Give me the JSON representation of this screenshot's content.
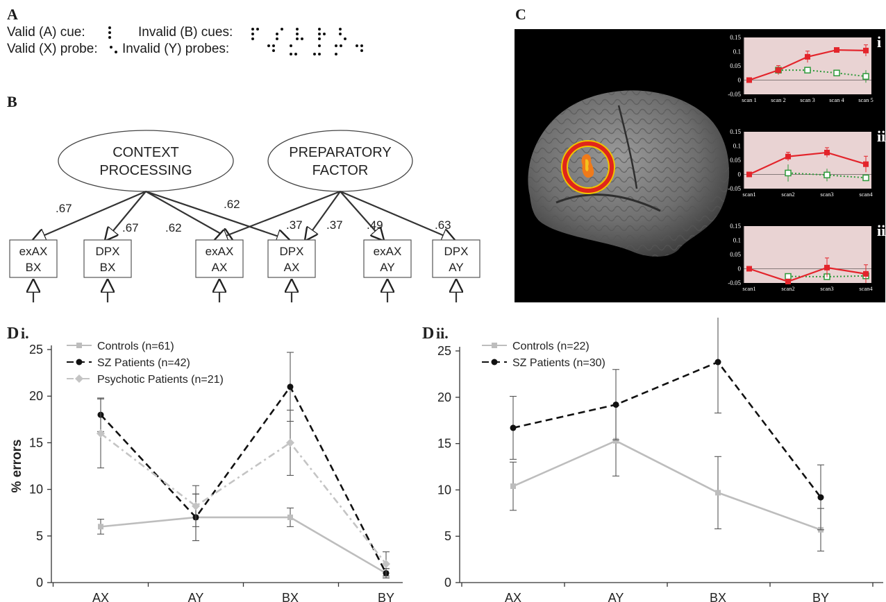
{
  "panelA": {
    "letter": "A",
    "valid_cue": "Valid (A) cue:",
    "invalid_cues": "Invalid (B) cues:",
    "valid_probe": "Valid (X) probe:",
    "invalid_probes": "Invalid (Y) probes:"
  },
  "panelB": {
    "letter": "B",
    "factors": [
      {
        "line1": "CONTEXT",
        "line2": "PROCESSING"
      },
      {
        "line1": "PREPARATORY",
        "line2": "FACTOR"
      }
    ],
    "boxes": [
      {
        "line1": "exAX",
        "line2": "BX"
      },
      {
        "line1": "DPX",
        "line2": "BX"
      },
      {
        "line1": "exAX",
        "line2": "AX"
      },
      {
        "line1": "DPX",
        "line2": "AX"
      },
      {
        "line1": "exAX",
        "line2": "AY"
      },
      {
        "line1": "DPX",
        "line2": "AY"
      }
    ],
    "loadings": [
      ".67",
      ".67",
      ".62",
      ".62",
      ".37",
      ".37",
      ".49",
      ".63"
    ]
  },
  "panelC": {
    "letter": "C",
    "inset_labels": [
      "i",
      "ii",
      "ii"
    ],
    "insets": [
      {
        "yticks": [
          "0.15",
          "0.1",
          "0.05",
          "0",
          "-0.05"
        ],
        "xticks": [
          "scan 1",
          "scan 2",
          "scan 3",
          "scan 4",
          "scan 5"
        ],
        "ylim": [
          -0.05,
          0.15
        ],
        "red": [
          0.0,
          0.035,
          0.082,
          0.106,
          0.104
        ],
        "red_err": [
          0.0,
          0.016,
          0.02,
          0.0,
          0.02
        ],
        "green": [
          null,
          0.035,
          0.035,
          0.025,
          0.013
        ],
        "green_err": [
          null,
          0.0,
          0.0,
          0.0,
          0.022
        ]
      },
      {
        "yticks": [
          "0.15",
          "0.1",
          "0.05",
          "0",
          "-0.05"
        ],
        "xticks": [
          "scan1",
          "scan2",
          "scan3",
          "scan4"
        ],
        "ylim": [
          -0.05,
          0.15
        ],
        "red": [
          0.0,
          0.063,
          0.077,
          0.036
        ],
        "red_err": [
          0.0,
          0.015,
          0.017,
          0.028
        ],
        "green": [
          null,
          0.005,
          -0.002,
          -0.012
        ],
        "green_err": [
          null,
          0.03,
          0.022,
          0.0
        ]
      },
      {
        "yticks": [
          "0.15",
          "0.1",
          "0.05",
          "0",
          "-0.05"
        ],
        "xticks": [
          "scan1",
          "scan2",
          "scan3",
          "scan4"
        ],
        "ylim": [
          -0.05,
          0.15
        ],
        "red": [
          0.0,
          -0.045,
          0.004,
          -0.018
        ],
        "red_err": [
          0.0,
          0.0,
          0.034,
          0.032
        ],
        "green": [
          null,
          -0.027,
          -0.028,
          -0.025
        ],
        "green_err": [
          null,
          0.0,
          0.0,
          0.014
        ]
      }
    ]
  },
  "chart_data": [
    {
      "type": "line",
      "panel_letter": "D",
      "panel_label": "i.",
      "ylabel": "% errors",
      "ylim": [
        0,
        25
      ],
      "yticks": [
        "0",
        "5",
        "10",
        "15",
        "20",
        "25"
      ],
      "categories": [
        "AX",
        "AY",
        "BX",
        "BY"
      ],
      "series": [
        {
          "name": "Controls (n=61)",
          "values": [
            6,
            7,
            7,
            1
          ],
          "err": [
            0.8,
            2.5,
            1.0,
            0.5
          ],
          "color": "#bdbdbd",
          "dash": "solid",
          "marker": "square"
        },
        {
          "name": "SZ Patients (n=42)",
          "values": [
            18,
            7,
            21,
            1
          ],
          "err": [
            1.8,
            2.5,
            3.7,
            0.5
          ],
          "color": "#111111",
          "dash": "dash",
          "marker": "circle"
        },
        {
          "name": "Psychotic Patients (n=21)",
          "values": [
            16,
            8.2,
            15,
            2
          ],
          "err": [
            3.7,
            2.2,
            3.5,
            1.3
          ],
          "color": "#c4c4c4",
          "dash": "dashdot",
          "marker": "diamond"
        }
      ]
    },
    {
      "type": "line",
      "panel_letter": "D",
      "panel_label": "ii.",
      "ylim": [
        0,
        25
      ],
      "yticks": [
        "0",
        "5",
        "10",
        "15",
        "20",
        "25"
      ],
      "categories": [
        "AX",
        "AY",
        "BX",
        "BY"
      ],
      "series": [
        {
          "name": "Controls (n=22)",
          "values": [
            10.4,
            15.3,
            9.7,
            5.7
          ],
          "err": [
            2.6,
            3.8,
            3.9,
            2.3
          ],
          "color": "#bdbdbd",
          "dash": "solid",
          "marker": "square"
        },
        {
          "name": "SZ Patients (n=30)",
          "values": [
            16.7,
            19.2,
            23.8,
            9.2
          ],
          "err": [
            3.4,
            3.8,
            5.5,
            3.5
          ],
          "color": "#111111",
          "dash": "dash",
          "marker": "circle"
        }
      ]
    }
  ]
}
